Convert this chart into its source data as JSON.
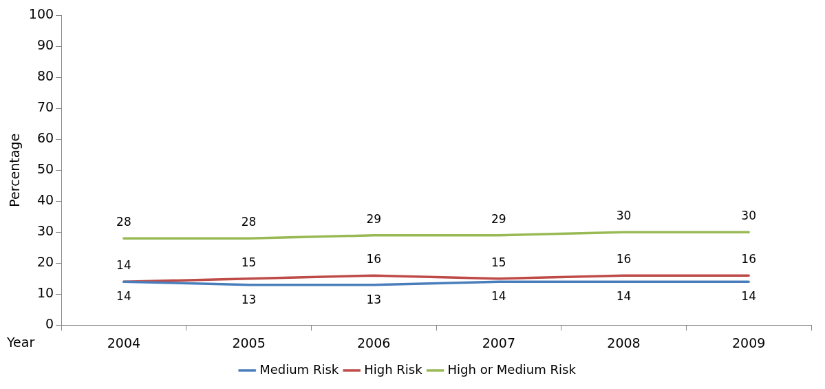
{
  "chart_data": {
    "type": "line",
    "xlabel": "Year",
    "ylabel": "Percentage",
    "categories": [
      "2004",
      "2005",
      "2006",
      "2007",
      "2008",
      "2009"
    ],
    "series": [
      {
        "name": "Medium Risk",
        "color": "#4a7ebb",
        "values": [
          14,
          13,
          13,
          14,
          14,
          14
        ]
      },
      {
        "name": "High Risk",
        "color": "#be4b48",
        "values": [
          14,
          15,
          16,
          15,
          16,
          16
        ]
      },
      {
        "name": "High or Medium Risk",
        "color": "#98b954",
        "values": [
          28,
          28,
          29,
          29,
          30,
          30
        ]
      }
    ],
    "ylim": [
      0,
      100
    ],
    "yticks": [
      0,
      10,
      20,
      30,
      40,
      50,
      60,
      70,
      80,
      90,
      100
    ],
    "data_labels": true,
    "legend": "bottom",
    "marker": "none",
    "line_style": "solid",
    "grid": false
  }
}
